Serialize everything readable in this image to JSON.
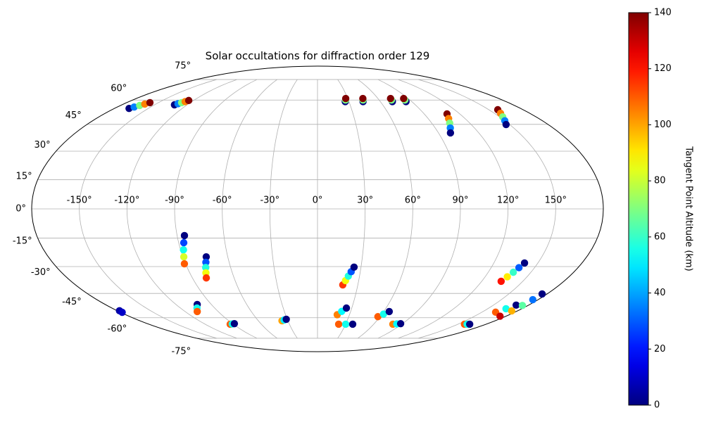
{
  "chart_data": {
    "type": "scatter",
    "projection": "mollweide",
    "title": "Solar occultations for diffraction order 129",
    "xlim": [
      -180,
      180
    ],
    "ylim": [
      -90,
      90
    ],
    "xticks": [
      {
        "value": -150,
        "label": "-150°"
      },
      {
        "value": -120,
        "label": "-120°"
      },
      {
        "value": -90,
        "label": "-90°"
      },
      {
        "value": -60,
        "label": "-60°"
      },
      {
        "value": -30,
        "label": "-30°"
      },
      {
        "value": 0,
        "label": "0°"
      },
      {
        "value": 30,
        "label": "30°"
      },
      {
        "value": 60,
        "label": "60°"
      },
      {
        "value": 90,
        "label": "90°"
      },
      {
        "value": 120,
        "label": "120°"
      },
      {
        "value": 150,
        "label": "150°"
      }
    ],
    "yticks": [
      {
        "value": -75,
        "label": "-75°"
      },
      {
        "value": -60,
        "label": "-60°"
      },
      {
        "value": -45,
        "label": "-45°"
      },
      {
        "value": -30,
        "label": "-30°"
      },
      {
        "value": -15,
        "label": "-15°"
      },
      {
        "value": 0,
        "label": "0°"
      },
      {
        "value": 15,
        "label": "15°"
      },
      {
        "value": 30,
        "label": "30°"
      },
      {
        "value": 45,
        "label": "45°"
      },
      {
        "value": 60,
        "label": "60°"
      },
      {
        "value": 75,
        "label": "75°"
      }
    ],
    "grid": true,
    "colormap": "jet",
    "colorbar": {
      "label": "Tangent Point Altitude (km)",
      "lim": [
        0,
        140
      ],
      "ticks": [
        0,
        20,
        40,
        60,
        80,
        100,
        120,
        140
      ]
    },
    "x": [
      -167,
      -164.8,
      -162.5,
      -160.3,
      -158,
      -131.6,
      -129.9,
      -128.1,
      -126.4,
      -124.6,
      26.5,
      27.3,
      28,
      43.5,
      44.3,
      45,
      71.5,
      72,
      72.5,
      84.5,
      85,
      85.5,
      109.2,
      106.6,
      104.1,
      101.5,
      98.9,
      157.8,
      155.2,
      152.5,
      149.9,
      147.2,
      -85.3,
      -86.7,
      -88.1,
      -89.4,
      -90.8,
      -74.4,
      -75.8,
      -77.2,
      -78.6,
      -80,
      -102,
      -105.5,
      -109,
      -178,
      -178.5,
      -93.3,
      -90.7,
      -88,
      -36,
      -33.5,
      -31,
      18.8,
      20.4,
      22,
      23.6,
      25.2,
      18.5,
      21.9,
      25.3,
      22.6,
      30.1,
      37.6,
      58,
      61.5,
      65,
      80.5,
      84.3,
      88,
      157,
      159.8,
      162.6,
      134.2,
      135.9,
      137.6,
      139.2,
      140.9,
      162.5,
      166,
      169.4,
      174.3,
      174.8,
      175.2,
      175.7,
      176.1
    ],
    "y": [
      54.6,
      55.5,
      56.5,
      57.4,
      58.3,
      56.9,
      57.6,
      58.3,
      59,
      59.7,
      59,
      60,
      61,
      59,
      60,
      61,
      59,
      60,
      61,
      59,
      60,
      61,
      51.2,
      48.4,
      45.7,
      42.9,
      40.1,
      53.8,
      51.6,
      49.4,
      47.1,
      44.9,
      -13.7,
      -17.4,
      -21.1,
      -24.8,
      -28.5,
      -24.8,
      -27.7,
      -30.5,
      -33.4,
      -36.2,
      -51.6,
      -53.8,
      -56,
      -55.5,
      -56.5,
      -64.4,
      -64.2,
      -64,
      -62,
      -61.5,
      -61,
      -40.1,
      -37.7,
      -35.2,
      -32.8,
      -30.3,
      -58,
      -55.9,
      -53.8,
      -64.4,
      -64.4,
      -64.4,
      -59.3,
      -57.6,
      -56,
      -64.4,
      -64.2,
      -64,
      -64.4,
      -64.4,
      -64.4,
      -38.1,
      -35.6,
      -33.1,
      -30.6,
      -28.1,
      -56.4,
      -54.2,
      -52,
      -59,
      -55.6,
      -52.2,
      -48.7,
      -45.3
    ],
    "c": [
      0,
      35,
      70,
      105,
      140,
      0,
      35,
      70,
      105,
      140,
      0,
      70,
      140,
      0,
      70,
      140,
      0,
      70,
      140,
      0,
      70,
      140,
      140,
      105,
      70,
      35,
      0,
      140,
      105,
      70,
      35,
      0,
      0,
      27,
      55,
      82,
      110,
      0,
      29,
      57,
      86,
      115,
      0,
      55,
      110,
      5,
      10,
      110,
      55,
      0,
      100,
      50,
      0,
      115,
      86,
      57,
      29,
      0,
      105,
      52,
      0,
      110,
      55,
      0,
      110,
      55,
      0,
      105,
      52,
      0,
      110,
      55,
      0,
      120,
      90,
      60,
      30,
      0,
      110,
      55,
      0,
      130,
      98,
      65,
      33,
      0
    ]
  }
}
